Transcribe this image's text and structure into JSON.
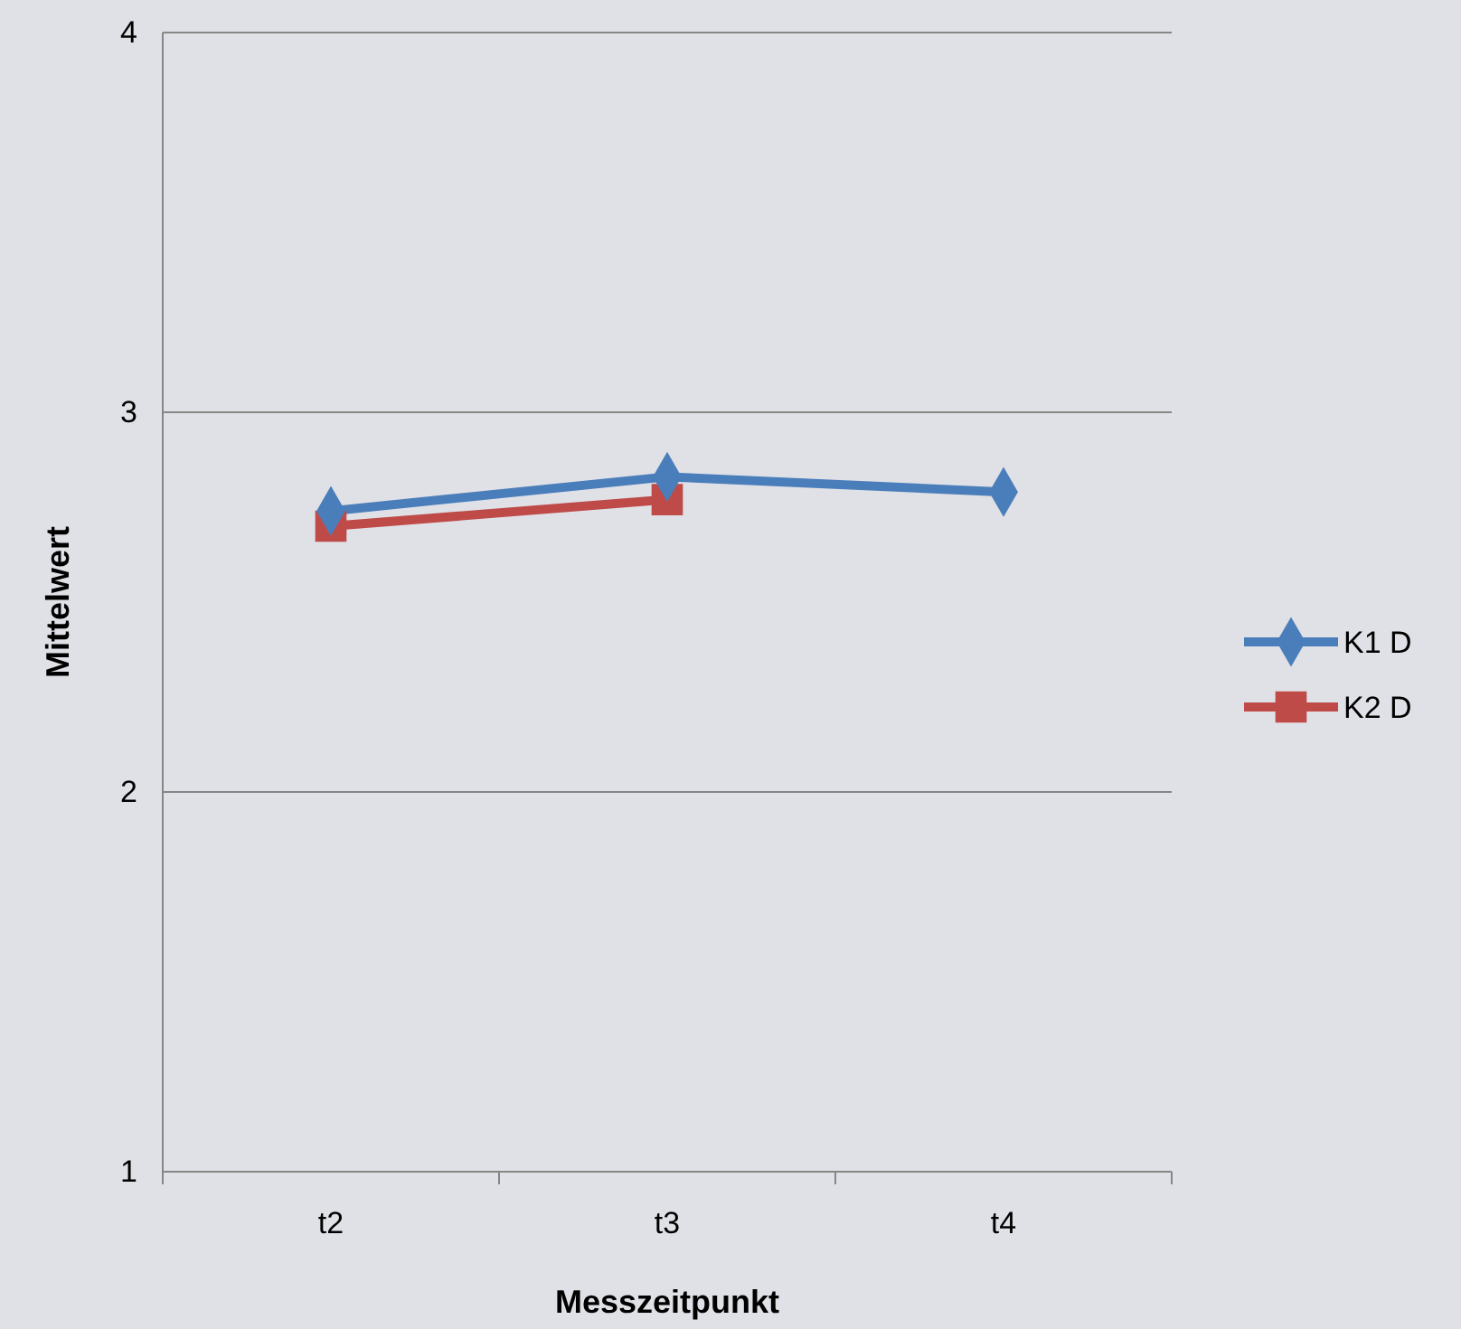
{
  "chart_data": {
    "type": "line",
    "xlabel": "Messzeitpunkt",
    "ylabel": "Mittelwert",
    "categories": [
      "t2",
      "t3",
      "t4"
    ],
    "series": [
      {
        "name": "K1 D",
        "color": "#4a7ebb",
        "marker": "diamond",
        "values": [
          2.74,
          2.83,
          2.79
        ]
      },
      {
        "name": "K2 D",
        "color": "#be4b48",
        "marker": "square",
        "values": [
          2.7,
          2.77,
          null
        ]
      }
    ],
    "ylim": [
      1,
      4
    ],
    "yticks": [
      1,
      2,
      3,
      4
    ],
    "grid": "y",
    "legend": "right",
    "line_style": "solid"
  }
}
